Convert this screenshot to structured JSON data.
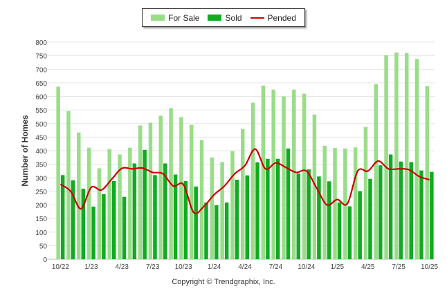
{
  "chart_data": {
    "type": "bar",
    "title": "",
    "xlabel": "",
    "ylabel": "Number of Homes",
    "ylim": [
      0,
      800
    ],
    "yticks": [
      0,
      50,
      100,
      150,
      200,
      250,
      300,
      350,
      400,
      450,
      500,
      550,
      600,
      650,
      700,
      750,
      800
    ],
    "grid": true,
    "legend_position": "top-center",
    "categories": [
      "10/22",
      "11/22",
      "12/22",
      "1/23",
      "2/23",
      "3/23",
      "4/23",
      "5/23",
      "6/23",
      "7/23",
      "8/23",
      "9/23",
      "10/23",
      "11/23",
      "12/23",
      "1/24",
      "2/24",
      "3/24",
      "4/24",
      "5/24",
      "6/24",
      "7/24",
      "8/24",
      "9/24",
      "10/24",
      "11/24",
      "12/24",
      "1/25",
      "2/25",
      "3/25",
      "4/25",
      "5/25",
      "6/25",
      "7/25",
      "8/25",
      "9/25",
      "10/25"
    ],
    "xtick_labels": [
      "10/22",
      "1/23",
      "4/23",
      "7/23",
      "10/23",
      "1/24",
      "4/24",
      "7/24",
      "10/24",
      "1/25",
      "4/25",
      "7/25",
      "10/25"
    ],
    "series": [
      {
        "name": "For Sale",
        "type": "bar",
        "color": "#99dd88",
        "values": [
          636,
          546,
          467,
          411,
          335,
          406,
          386,
          411,
          493,
          503,
          529,
          557,
          524,
          495,
          439,
          375,
          358,
          398,
          480,
          577,
          640,
          625,
          600,
          625,
          610,
          533,
          418,
          410,
          408,
          412,
          487,
          645,
          752,
          762,
          760,
          738,
          638
        ]
      },
      {
        "name": "Sold",
        "type": "bar",
        "color": "#11aa22",
        "values": [
          310,
          291,
          260,
          194,
          240,
          288,
          230,
          353,
          403,
          310,
          353,
          312,
          288,
          268,
          209,
          199,
          209,
          293,
          309,
          357,
          370,
          370,
          408,
          316,
          331,
          305,
          287,
          209,
          195,
          251,
          296,
          346,
          386,
          360,
          358,
          327,
          322
        ]
      },
      {
        "name": "Pended",
        "type": "line",
        "color": "#cc0000",
        "values": [
          276,
          250,
          186,
          265,
          255,
          295,
          335,
          333,
          336,
          320,
          315,
          270,
          275,
          172,
          195,
          238,
          270,
          315,
          345,
          406,
          333,
          355,
          338,
          320,
          325,
          262,
          200,
          220,
          205,
          325,
          325,
          362,
          333,
          333,
          330,
          305,
          293
        ]
      }
    ]
  },
  "legend": {
    "for_sale": "For Sale",
    "sold": "Sold",
    "pended": "Pended"
  },
  "footer": {
    "copyright": "Copyright © Trendgraphix, Inc."
  }
}
